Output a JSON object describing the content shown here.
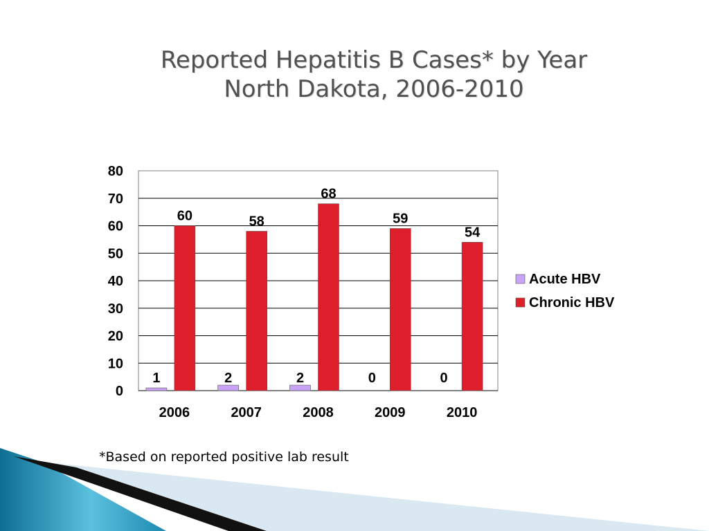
{
  "slide": {
    "title_line1": "Reported Hepatitis B Cases* by Year",
    "title_line2": "North Dakota, 2006-2010",
    "footnote": "*Based on reported positive lab result"
  },
  "chart_data": {
    "type": "bar",
    "categories": [
      "2006",
      "2007",
      "2008",
      "2009",
      "2010"
    ],
    "series": [
      {
        "name": "Acute HBV",
        "values": [
          1,
          2,
          2,
          0,
          0
        ],
        "color": "#c9a3f5"
      },
      {
        "name": "Chronic HBV",
        "values": [
          60,
          58,
          68,
          59,
          54
        ],
        "color": "#dc1f2a"
      }
    ],
    "ylim": [
      0,
      80
    ],
    "yticks": [
      0,
      10,
      20,
      30,
      40,
      50,
      60,
      70,
      80
    ],
    "grid": true,
    "legend": "right",
    "data_labels": true
  },
  "decor": {
    "accent_colors": [
      "#1b8ab0",
      "#6cc6e2",
      "#111111",
      "#d6e6ef"
    ]
  }
}
